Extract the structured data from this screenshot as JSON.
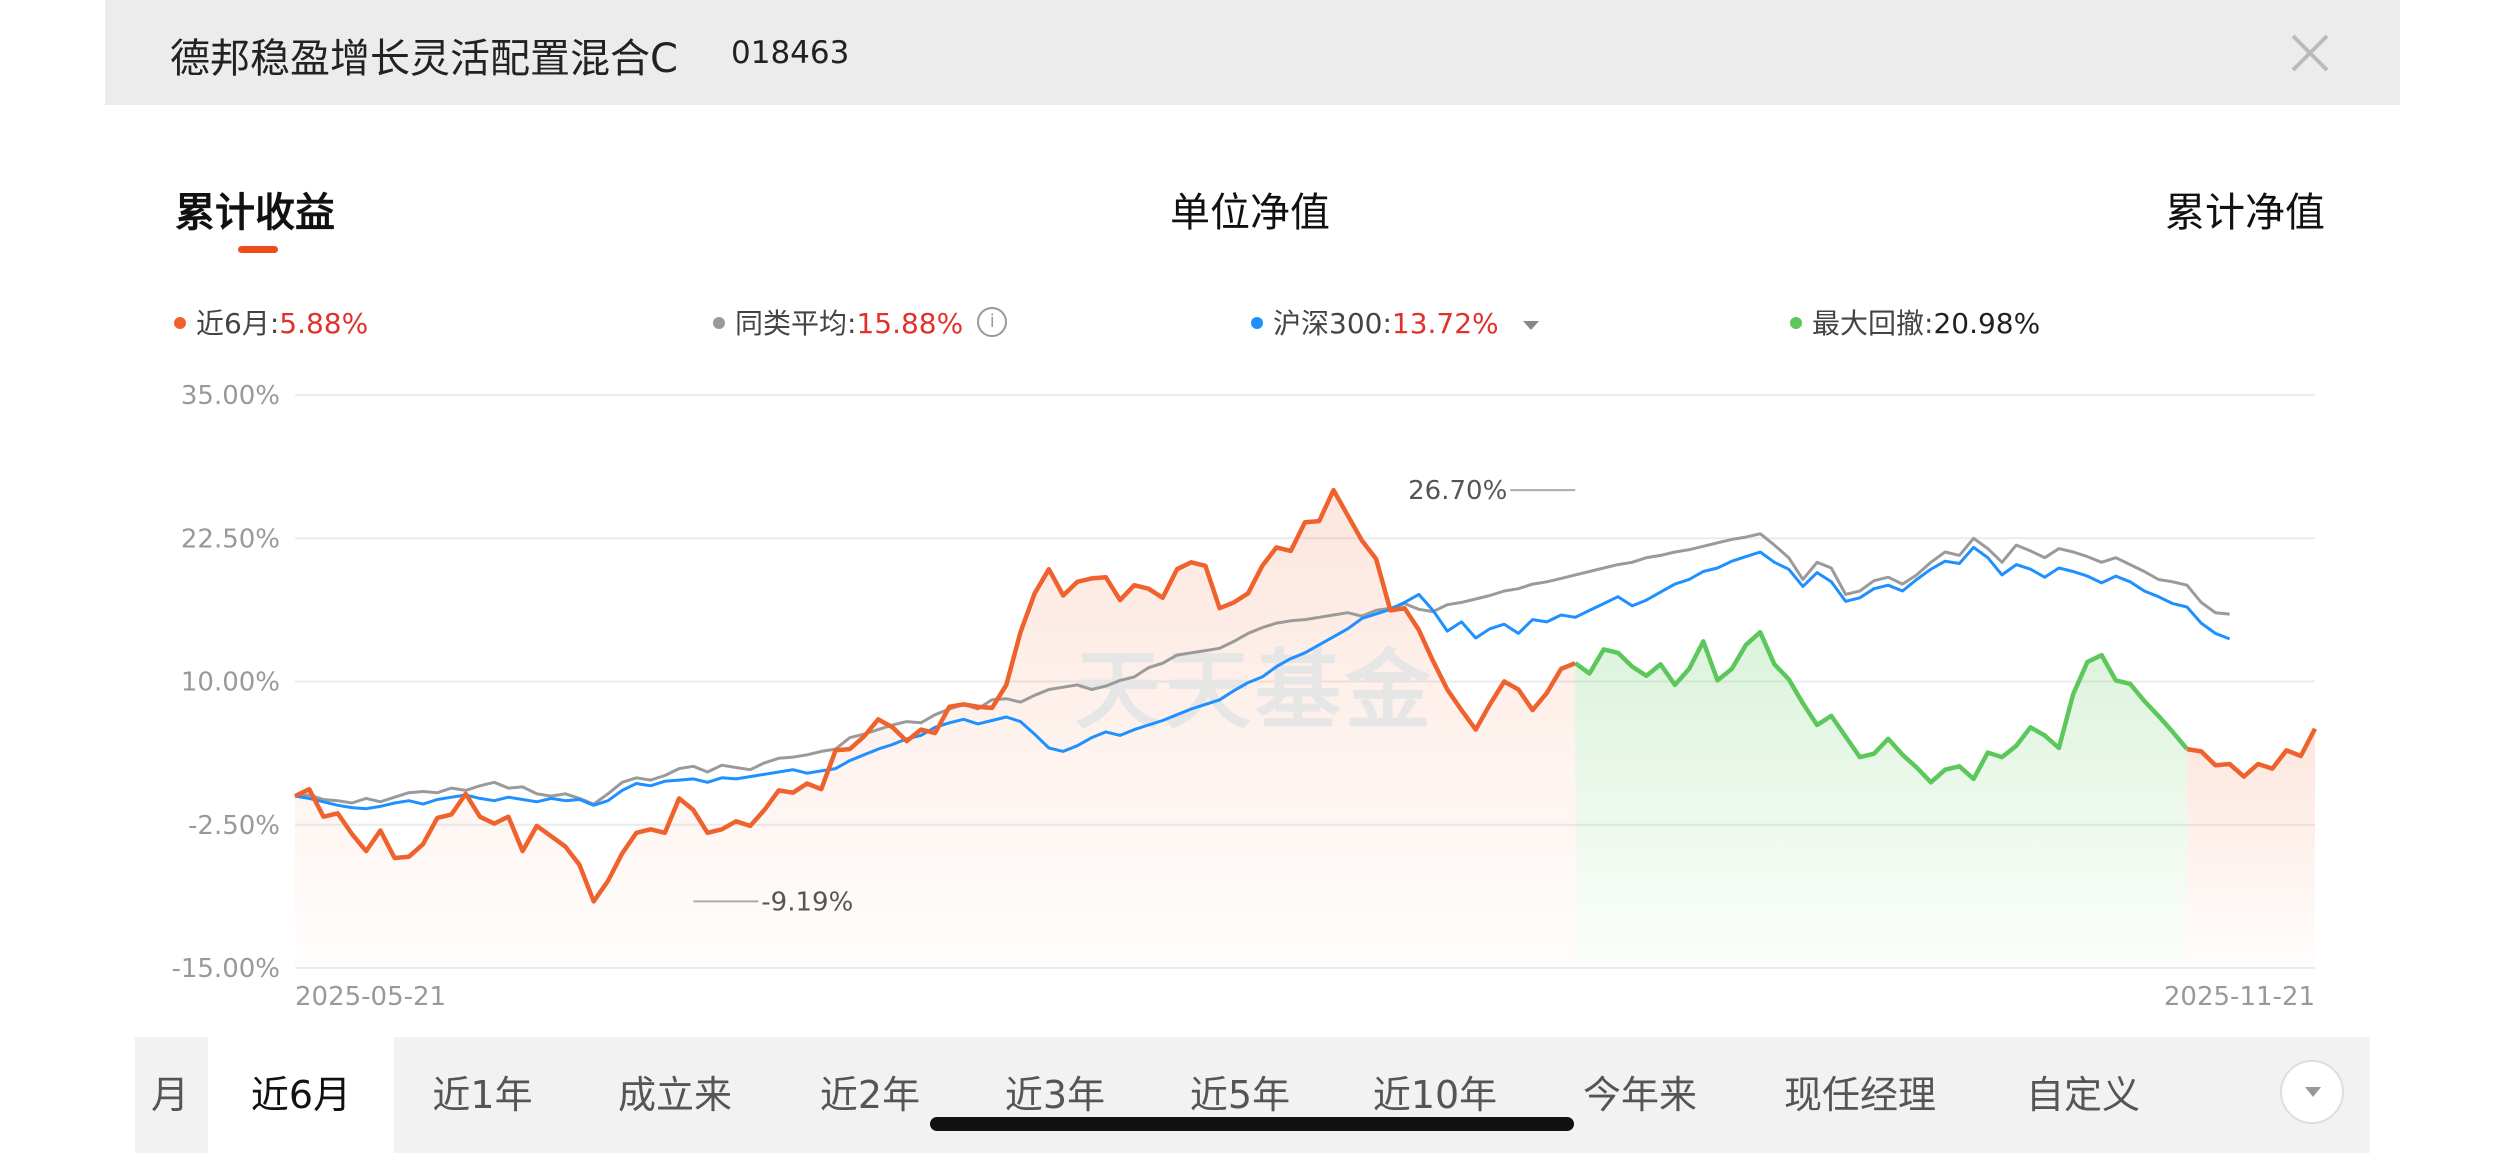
{
  "header": {
    "title": "德邦稳盈增长灵活配置混合C",
    "code": "018463"
  },
  "tabs": [
    {
      "label": "累计收益",
      "active": true
    },
    {
      "label": "单位净值"
    },
    {
      "label": "累计净值"
    }
  ],
  "legend": [
    {
      "name": "近6月",
      "value": "5.88%",
      "color": "#f0622d"
    },
    {
      "name": "同类平均",
      "value": "15.88%",
      "color": "#9a9a9a"
    },
    {
      "name": "沪深300",
      "value": "13.72%",
      "color": "#1e90ff"
    },
    {
      "name": "最大回撤",
      "value": "20.98%",
      "color": "#5cc85c"
    }
  ],
  "watermark": "天天基金",
  "chart_data": {
    "type": "line",
    "ylim": [
      -15,
      35
    ],
    "y_ticks": [
      "35.00%",
      "22.50%",
      "10.00%",
      "-2.50%",
      "-15.00%"
    ],
    "x_start_label": "2025-05-21",
    "x_end_label": "2025-11-21",
    "grid": true,
    "annotations": [
      {
        "text": "26.70%",
        "index": 90,
        "value": 26.7
      },
      {
        "text": "-9.19%",
        "index": 28,
        "value": -9.19
      }
    ],
    "drawdown_range": {
      "start_index": 90,
      "end_index": 133,
      "color": "#5cc85c"
    },
    "series": [
      {
        "name": "近6月",
        "color": "#f0622d",
        "values": [
          0.0,
          0.6,
          -1.8,
          -1.5,
          -3.3,
          -4.8,
          -3.0,
          -5.4,
          -5.3,
          -4.2,
          -1.9,
          -1.6,
          0.2,
          -1.8,
          -2.4,
          -1.8,
          -4.8,
          -2.6,
          -3.5,
          -4.4,
          -6.0,
          -9.19,
          -7.4,
          -5.0,
          -3.2,
          -2.9,
          -3.2,
          -0.2,
          -1.2,
          -3.2,
          -2.9,
          -2.2,
          -2.6,
          -1.2,
          0.5,
          0.3,
          1.1,
          0.6,
          4.0,
          4.1,
          5.2,
          6.7,
          6.0,
          4.8,
          5.8,
          5.5,
          7.8,
          8.0,
          7.8,
          7.7,
          9.7,
          14.3,
          17.7,
          19.8,
          17.5,
          18.7,
          19.0,
          19.1,
          17.1,
          18.4,
          18.1,
          17.3,
          19.8,
          20.4,
          20.1,
          16.4,
          16.9,
          17.7,
          20.1,
          21.7,
          21.4,
          23.9,
          24.0,
          26.7,
          24.5,
          22.3,
          20.7,
          16.2,
          16.4,
          14.5,
          11.8,
          9.3,
          7.5,
          5.8,
          8.0,
          10.0,
          9.3,
          7.5,
          9.0,
          11.1,
          11.6,
          10.7,
          12.8,
          12.5,
          11.3,
          10.5,
          11.5,
          9.7,
          11.1,
          13.5,
          10.1,
          11.1,
          13.2,
          14.3,
          11.5,
          10.2,
          8.1,
          6.2,
          7.0,
          5.2,
          3.4,
          3.7,
          5.0,
          3.6,
          2.5,
          1.2,
          2.3,
          2.6,
          1.5,
          3.8,
          3.4,
          4.4,
          6.0,
          5.3,
          4.2,
          8.9,
          11.7,
          12.3,
          10.1,
          9.8,
          8.3,
          7.0,
          5.6,
          4.1,
          3.9,
          2.7,
          2.8,
          1.7,
          2.8,
          2.4,
          4.0,
          3.5,
          5.88
        ]
      },
      {
        "name": "同类平均",
        "color": "#9a9a9a",
        "values": [
          0.0,
          0.1,
          -0.3,
          -0.4,
          -0.6,
          -0.2,
          -0.5,
          -0.1,
          0.3,
          0.4,
          0.3,
          0.7,
          0.5,
          0.9,
          1.2,
          0.7,
          0.8,
          0.2,
          0.0,
          0.2,
          -0.2,
          -0.7,
          0.2,
          1.2,
          1.6,
          1.4,
          1.8,
          2.4,
          2.6,
          2.1,
          2.7,
          2.5,
          2.3,
          2.9,
          3.3,
          3.4,
          3.6,
          3.9,
          4.1,
          5.1,
          5.4,
          5.8,
          6.2,
          6.5,
          6.4,
          7.1,
          7.6,
          8.0,
          7.6,
          8.4,
          8.5,
          8.2,
          8.8,
          9.3,
          9.5,
          9.7,
          9.3,
          9.6,
          10.1,
          10.4,
          11.2,
          11.6,
          12.3,
          12.5,
          12.7,
          12.9,
          13.5,
          14.2,
          14.7,
          15.1,
          15.3,
          15.4,
          15.6,
          15.8,
          16.0,
          15.7,
          16.2,
          16.4,
          16.8,
          16.3,
          16.1,
          16.7,
          16.9,
          17.2,
          17.5,
          17.9,
          18.1,
          18.5,
          18.7,
          19.0,
          19.3,
          19.6,
          19.9,
          20.2,
          20.4,
          20.8,
          21.0,
          21.3,
          21.5,
          21.8,
          22.1,
          22.4,
          22.6,
          22.9,
          21.9,
          20.8,
          18.9,
          20.4,
          19.9,
          17.6,
          17.9,
          18.8,
          19.1,
          18.5,
          19.3,
          20.4,
          21.3,
          21.0,
          22.5,
          21.6,
          20.4,
          21.9,
          21.4,
          20.8,
          21.6,
          21.3,
          20.9,
          20.4,
          20.8,
          20.2,
          19.6,
          18.9,
          18.7,
          18.4,
          16.9,
          16.0,
          15.88
        ]
      },
      {
        "name": "沪深300",
        "color": "#1e90ff",
        "values": [
          0.0,
          -0.2,
          -0.5,
          -0.8,
          -1.0,
          -1.1,
          -0.9,
          -0.6,
          -0.4,
          -0.7,
          -0.3,
          -0.1,
          0.1,
          -0.2,
          -0.4,
          -0.1,
          -0.3,
          -0.5,
          -0.2,
          -0.4,
          -0.3,
          -0.8,
          -0.4,
          0.5,
          1.1,
          0.9,
          1.3,
          1.4,
          1.5,
          1.2,
          1.6,
          1.5,
          1.7,
          1.9,
          2.1,
          2.3,
          2.0,
          2.2,
          2.4,
          3.1,
          3.6,
          4.1,
          4.5,
          5.0,
          5.3,
          6.0,
          6.4,
          6.7,
          6.3,
          6.6,
          6.9,
          6.5,
          5.4,
          4.2,
          3.9,
          4.4,
          5.1,
          5.6,
          5.3,
          5.8,
          6.2,
          6.6,
          7.1,
          7.6,
          8.0,
          8.4,
          9.2,
          9.9,
          10.4,
          11.3,
          12.0,
          12.5,
          13.2,
          13.9,
          14.6,
          15.5,
          15.9,
          16.3,
          16.9,
          17.6,
          16.2,
          14.4,
          15.2,
          13.8,
          14.6,
          15.0,
          14.2,
          15.4,
          15.2,
          15.8,
          15.6,
          16.2,
          16.8,
          17.4,
          16.6,
          17.1,
          17.8,
          18.5,
          18.9,
          19.6,
          19.9,
          20.5,
          20.9,
          21.3,
          20.4,
          19.8,
          18.3,
          19.5,
          18.7,
          17.0,
          17.3,
          18.1,
          18.4,
          17.9,
          18.9,
          19.8,
          20.5,
          20.3,
          21.7,
          20.8,
          19.3,
          20.2,
          19.8,
          19.1,
          19.9,
          19.6,
          19.2,
          18.6,
          19.2,
          18.7,
          17.9,
          17.4,
          16.8,
          16.5,
          15.1,
          14.2,
          13.72
        ]
      }
    ]
  },
  "periods": [
    {
      "label": "月"
    },
    {
      "label": "近6月",
      "active": true
    },
    {
      "label": "近1年"
    },
    {
      "label": "成立来"
    },
    {
      "label": "近2年"
    },
    {
      "label": "近3年"
    },
    {
      "label": "近5年"
    },
    {
      "label": "近10年"
    },
    {
      "label": "今年来"
    },
    {
      "label": "现任经理"
    },
    {
      "label": "自定义"
    }
  ]
}
